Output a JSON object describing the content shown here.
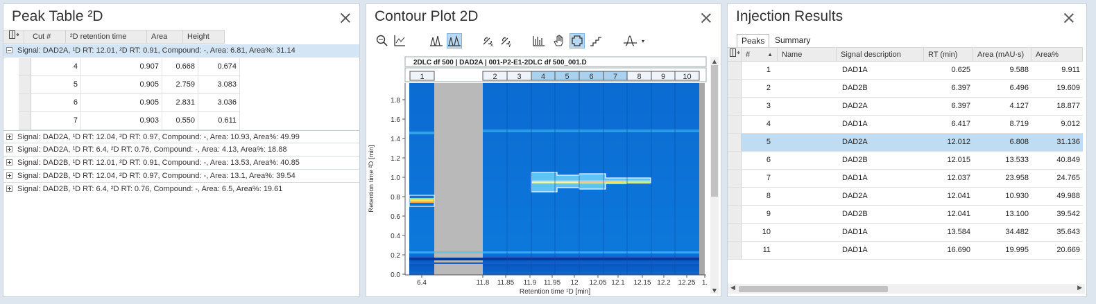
{
  "peak_table": {
    "title": "Peak Table ²D",
    "columns": [
      "Cut #",
      "²D retention time",
      "Area",
      "Height"
    ],
    "expanded_group": "Signal: DAD2A, ¹D RT: 12.01, ²D RT: 0.91, Compound: -, Area: 6.81, Area%: 31.14",
    "rows": [
      [
        "4",
        "0.907",
        "0.668",
        "0.674"
      ],
      [
        "5",
        "0.905",
        "2.759",
        "3.083"
      ],
      [
        "6",
        "0.905",
        "2.831",
        "3.036"
      ],
      [
        "7",
        "0.903",
        "0.550",
        "0.611"
      ]
    ],
    "groups": [
      "Signal: DAD2A, ¹D RT: 12.04, ²D RT: 0.97, Compound: -, Area: 10.93, Area%: 49.99",
      "Signal: DAD2A, ¹D RT: 6.4, ²D RT: 0.76, Compound: -, Area: 4.13, Area%: 18.88",
      "Signal: DAD2B, ¹D RT: 12.01, ²D RT: 0.91, Compound: -, Area: 13.53, Area%: 40.85",
      "Signal: DAD2B, ¹D RT: 12.04, ²D RT: 0.97, Compound: -, Area: 13.1, Area%: 39.54",
      "Signal: DAD2B, ¹D RT: 6.4, ²D RT: 0.76, Compound: -, Area: 6.5, Area%: 19.61"
    ]
  },
  "contour": {
    "title": "Contour Plot 2D",
    "toolbar": [
      "zoom-icon",
      "axis-icon",
      "peaks-icon",
      "peaks-active-icon",
      "link-x-icon",
      "link-y-icon",
      "spectrum-icon",
      "hand-icon",
      "region-active-icon",
      "steps-icon",
      "baseline-icon"
    ],
    "plot_title": "2DLC df 500 | DAD2A | 001-P2-E1-2DLC df 500_001.D",
    "cut_labels": [
      "1",
      "2",
      "3",
      "4",
      "5",
      "6",
      "7",
      "8",
      "9",
      "10"
    ],
    "cut_highlight": [
      "4",
      "5",
      "6",
      "7"
    ],
    "ylabel": "Retention time ²D [min]",
    "xlabel": "Retention time ¹D [min]",
    "yticks": [
      "1.8",
      "1.6",
      "1.4",
      "1.2",
      "1.0",
      "0.8",
      "0.6",
      "0.4",
      "0.2",
      "0.0"
    ],
    "xticks": [
      "6.4",
      "11.8",
      "11.85",
      "11.9",
      "11.95",
      "12",
      "12.05",
      "12.1",
      "12.15",
      "12.2",
      "12.25",
      "1."
    ]
  },
  "injection": {
    "title": "Injection Results",
    "tabs": [
      "Peaks",
      "Summary"
    ],
    "columns": [
      "#",
      "Name",
      "Signal description",
      "RT (min)",
      "Area (mAU·s)",
      "Area%"
    ],
    "rows": [
      [
        "1",
        "",
        "DAD1A",
        "0.625",
        "9.588",
        "9.911"
      ],
      [
        "2",
        "",
        "DAD2B",
        "6.397",
        "6.496",
        "19.609"
      ],
      [
        "3",
        "",
        "DAD2A",
        "6.397",
        "4.127",
        "18.877"
      ],
      [
        "4",
        "",
        "DAD1A",
        "6.417",
        "8.719",
        "9.012"
      ],
      [
        "5",
        "",
        "DAD2A",
        "12.012",
        "6.808",
        "31.136"
      ],
      [
        "6",
        "",
        "DAD2B",
        "12.015",
        "13.533",
        "40.849"
      ],
      [
        "7",
        "",
        "DAD1A",
        "12.037",
        "23.958",
        "24.765"
      ],
      [
        "8",
        "",
        "DAD2A",
        "12.041",
        "10.930",
        "49.988"
      ],
      [
        "9",
        "",
        "DAD2B",
        "12.041",
        "13.100",
        "39.542"
      ],
      [
        "10",
        "",
        "DAD1A",
        "13.584",
        "34.482",
        "35.643"
      ],
      [
        "11",
        "",
        "DAD1A",
        "16.690",
        "19.995",
        "20.669"
      ]
    ],
    "selected_row": "5"
  },
  "colors": {
    "accent": "#bfdcf2",
    "plot_bg": "#0a6fd8",
    "gap": "#b9b9b9"
  }
}
